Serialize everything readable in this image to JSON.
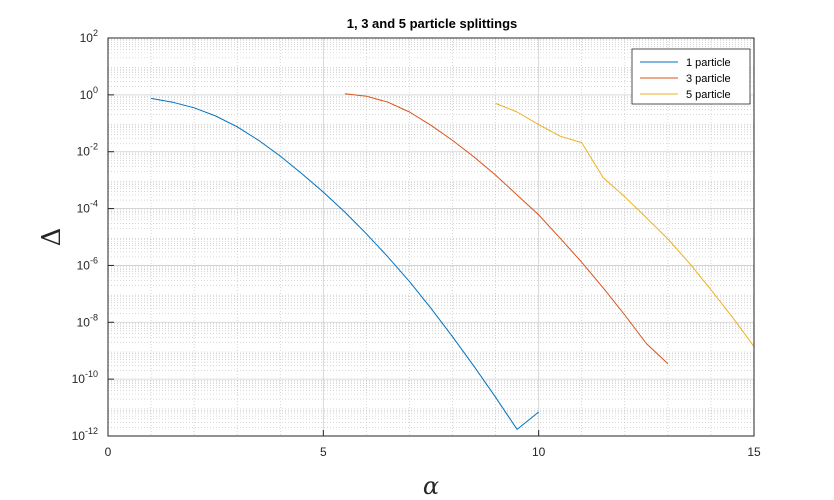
{
  "chart_data": {
    "type": "line",
    "title": "1, 3 and 5 particle splittings",
    "xlabel": "α",
    "ylabel": "Δ",
    "xlim": [
      0,
      15
    ],
    "ylim": [
      1e-12,
      100
    ],
    "yscale": "log",
    "grid": true,
    "minor_grid": true,
    "legend_position": "top-right",
    "x_ticks": [
      "0",
      "5",
      "10",
      "15"
    ],
    "y_ticks": [
      {
        "base": "10",
        "exp": "-12"
      },
      {
        "base": "10",
        "exp": "-10"
      },
      {
        "base": "10",
        "exp": "-8"
      },
      {
        "base": "10",
        "exp": "-6"
      },
      {
        "base": "10",
        "exp": "-4"
      },
      {
        "base": "10",
        "exp": "-2"
      },
      {
        "base": "10",
        "exp": "0"
      },
      {
        "base": "10",
        "exp": "2"
      }
    ],
    "series": [
      {
        "name": "1 particle",
        "color": "#0072BD",
        "x": [
          1.0,
          1.5,
          2.0,
          2.5,
          3.0,
          3.5,
          4.0,
          4.5,
          5.0,
          5.5,
          6.0,
          6.5,
          7.0,
          7.5,
          8.0,
          8.5,
          9.0,
          9.5,
          10.0
        ],
        "y": [
          0.75,
          0.55,
          0.35,
          0.18,
          0.075,
          0.025,
          0.007,
          0.0017,
          0.00038,
          7.5e-05,
          1.3e-05,
          2e-06,
          2.7e-07,
          3.1e-08,
          3.1e-09,
          2.8e-10,
          2.3e-11,
          1.7e-12,
          7e-12
        ]
      },
      {
        "name": "3 particle",
        "color": "#D95319",
        "x": [
          5.5,
          6.0,
          6.5,
          7.0,
          7.5,
          8.0,
          8.5,
          9.0,
          9.5,
          10.0,
          10.5,
          11.0,
          11.5,
          12.0,
          12.5,
          13.0
        ],
        "y": [
          1.1,
          0.9,
          0.55,
          0.25,
          0.085,
          0.025,
          0.0065,
          0.0015,
          0.0003,
          6e-05,
          9e-06,
          1.3e-06,
          1.6e-07,
          1.8e-08,
          1.8e-09,
          3.5e-10
        ]
      },
      {
        "name": "5 particle",
        "color": "#EDB120",
        "x": [
          9.0,
          9.5,
          10.0,
          10.5,
          11.0,
          11.5,
          12.0,
          12.5,
          13.0,
          13.5,
          14.0,
          14.5,
          15.0
        ],
        "y": [
          0.5,
          0.25,
          0.09,
          0.035,
          0.021,
          0.0012,
          0.00026,
          4.8e-05,
          8.5e-06,
          1.2e-06,
          1.4e-07,
          1.5e-08,
          1.4e-09
        ]
      }
    ]
  }
}
